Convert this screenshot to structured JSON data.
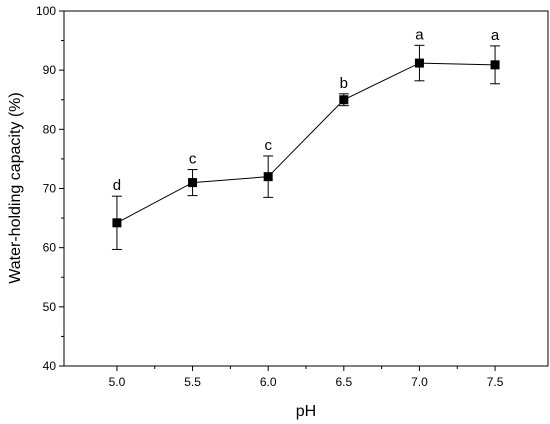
{
  "chart_data": {
    "type": "line",
    "title": "",
    "xlabel": "pH",
    "ylabel": "Water-holding capacity (%)",
    "xlim": [
      4.65,
      7.85
    ],
    "ylim": [
      40,
      100
    ],
    "x_ticks": [
      "5.0",
      "5.5",
      "6.0",
      "6.5",
      "7.0",
      "7.5"
    ],
    "y_ticks": [
      "40",
      "50",
      "60",
      "70",
      "80",
      "90",
      "100"
    ],
    "grid": false,
    "marker": "square",
    "series": [
      {
        "x": [
          5.0,
          5.5,
          6.0,
          6.5,
          7.0,
          7.5
        ],
        "y": [
          64.2,
          71.0,
          72.0,
          85.0,
          91.2,
          90.9
        ],
        "error": [
          4.5,
          2.2,
          3.5,
          1.0,
          3.0,
          3.2
        ],
        "labels": [
          "d",
          "c",
          "c",
          "b",
          "a",
          "a"
        ]
      }
    ],
    "color": "#000000"
  }
}
